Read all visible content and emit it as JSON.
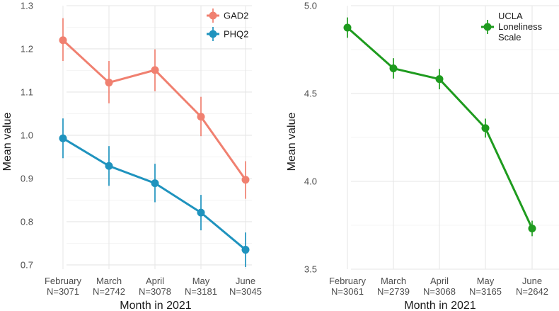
{
  "chart_data": [
    {
      "type": "line",
      "title": "",
      "xlabel": "Month in 2021",
      "ylabel": "Mean value",
      "categories": [
        "February",
        "March",
        "April",
        "May",
        "June"
      ],
      "sample_sizes": [
        "N=3071",
        "N=2742",
        "N=3078",
        "N=3181",
        "N=3045"
      ],
      "ylim": [
        0.69,
        1.3
      ],
      "yticks": [
        "0.7",
        "0.8",
        "0.9",
        "1.0",
        "1.1",
        "1.2",
        "1.3"
      ],
      "grid": true,
      "legend_position": "top-right",
      "series": [
        {
          "name": "GAD2",
          "color": "#F08070",
          "values": [
            1.22,
            1.122,
            1.151,
            1.043,
            0.897
          ],
          "lower": [
            1.172,
            1.074,
            1.102,
            0.998,
            0.853
          ],
          "upper": [
            1.271,
            1.172,
            1.199,
            1.089,
            0.94
          ]
        },
        {
          "name": "PHQ2",
          "color": "#1F93BE",
          "values": [
            0.993,
            0.929,
            0.889,
            0.821,
            0.735
          ],
          "lower": [
            0.947,
            0.883,
            0.845,
            0.78,
            0.695
          ],
          "upper": [
            1.039,
            0.975,
            0.934,
            0.862,
            0.775
          ]
        }
      ]
    },
    {
      "type": "line",
      "title": "",
      "xlabel": "Month in 2021",
      "ylabel": "Mean value",
      "categories": [
        "February",
        "March",
        "April",
        "May",
        "June"
      ],
      "sample_sizes": [
        "N=3061",
        "N=2739",
        "N=3068",
        "N=3165",
        "N=2642"
      ],
      "ylim": [
        3.5,
        5.0
      ],
      "yticks": [
        "3.5",
        "4.0",
        "4.5",
        "5.0"
      ],
      "grid": true,
      "legend_position": "top-right",
      "series": [
        {
          "name": "UCLA Loneliness Scale",
          "legend_lines": [
            "UCLA",
            "Loneliness",
            "Scale"
          ],
          "color": "#1E9B1E",
          "values": [
            4.875,
            4.643,
            4.582,
            4.303,
            3.732
          ],
          "lower": [
            4.817,
            4.585,
            4.524,
            4.249,
            3.688
          ],
          "upper": [
            4.933,
            4.701,
            4.64,
            4.357,
            3.776
          ]
        }
      ]
    }
  ]
}
